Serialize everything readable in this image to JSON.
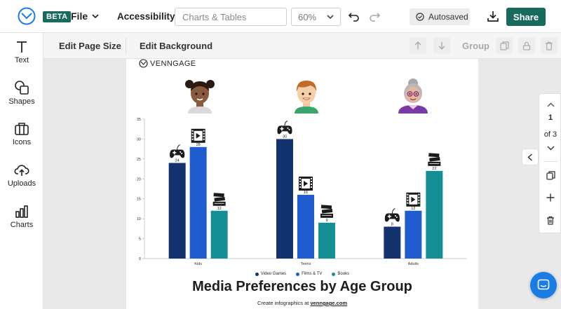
{
  "topbar": {
    "beta": "BETA",
    "file": "File",
    "accessibility": "Accessibility",
    "search_placeholder": "Charts & Tables",
    "zoom": "60%",
    "autosaved": "Autosaved",
    "share": "Share"
  },
  "rail": {
    "items": [
      {
        "label": "Text",
        "icon": "text-icon"
      },
      {
        "label": "Shapes",
        "icon": "shapes-icon"
      },
      {
        "label": "Icons",
        "icon": "icons-icon"
      },
      {
        "label": "Uploads",
        "icon": "upload-icon"
      },
      {
        "label": "Charts",
        "icon": "chart-icon"
      }
    ]
  },
  "toolbar": {
    "edit_page_size": "Edit Page Size",
    "edit_background": "Edit Background",
    "group": "Group"
  },
  "canvas": {
    "brand": "VENNGAGE",
    "title": "Media Preferences by Age Group",
    "credit_prefix": "Create infographics at ",
    "credit_link": "venngage.com"
  },
  "pages": {
    "current": "1",
    "of_label": "of 3"
  },
  "colors": {
    "brand_green": "#176a5c",
    "video_games": "#13336e",
    "films_tv": "#1f5ccf",
    "books": "#168f94"
  },
  "chart_data": {
    "type": "bar",
    "categories": [
      "Kids",
      "Teens",
      "Adults"
    ],
    "series": [
      {
        "name": "Video Games",
        "values": [
          24,
          30,
          8
        ],
        "color": "#13336e",
        "icon": "gamepad-icon"
      },
      {
        "name": "Films & TV",
        "values": [
          28,
          16,
          12
        ],
        "color": "#1f5ccf",
        "icon": "film-icon"
      },
      {
        "name": "Books",
        "values": [
          12,
          9,
          22
        ],
        "color": "#168f94",
        "icon": "books-icon"
      }
    ],
    "y_ticks": [
      0,
      5,
      10,
      15,
      20,
      25,
      30,
      35
    ],
    "ylim": [
      0,
      35
    ],
    "legend_position": "bottom",
    "grid": false
  }
}
